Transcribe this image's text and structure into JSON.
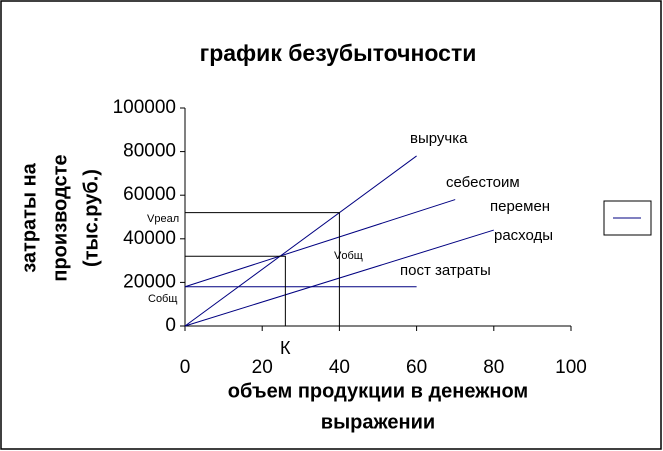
{
  "chart_data": {
    "type": "line",
    "title": "график безубыточности",
    "xlabel": [
      "объем продукции в денежном",
      "выражении"
    ],
    "ylabel": [
      "затраты на",
      "производсте",
      "(тыс.руб.)"
    ],
    "xlim": [
      0,
      100
    ],
    "xticks": [
      0,
      20,
      40,
      60,
      80,
      100
    ],
    "ylim": [
      0,
      100000
    ],
    "yticks": [
      0,
      20000,
      40000,
      60000,
      80000,
      100000
    ],
    "grid": false,
    "series": [
      {
        "color": "#000080",
        "x": [
          0,
          60
        ],
        "values": [
          0,
          78000
        ]
      },
      {
        "color": "#000080",
        "x": [
          0,
          70
        ],
        "values": [
          18000,
          58000
        ]
      },
      {
        "color": "#000080",
        "x": [
          0,
          80
        ],
        "values": [
          0,
          44000
        ]
      },
      {
        "color": "#000080",
        "x": [
          0,
          60
        ],
        "values": [
          18000,
          18000
        ]
      },
      {
        "color": "#000000",
        "x": [
          0,
          26,
          26
        ],
        "values": [
          32000,
          32000,
          0
        ]
      },
      {
        "color": "#000000",
        "x": [
          0,
          40,
          40
        ],
        "values": [
          52000,
          52000,
          0
        ]
      }
    ],
    "annotations": [
      "выручка",
      "себестоим",
      "перемен",
      "расходы",
      "пост затраты",
      "Vреал",
      "Vобщ",
      "Cобщ",
      "К"
    ]
  }
}
